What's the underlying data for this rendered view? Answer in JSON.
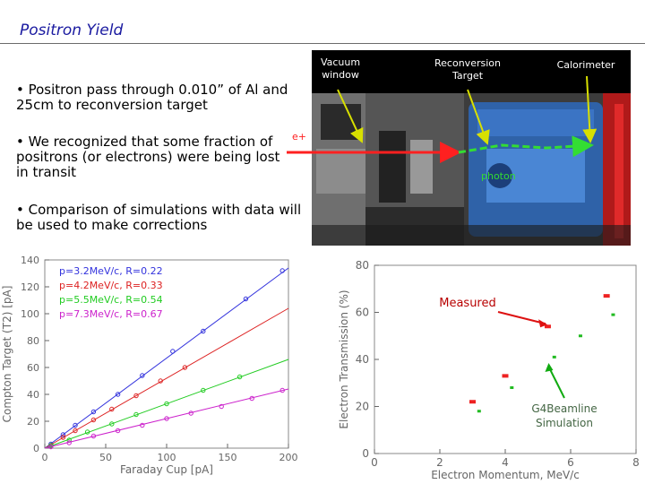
{
  "slide": {
    "title": "Positron Yield",
    "bullets": [
      "• Positron pass through 0.010” of Al and 25cm to reconversion target",
      "• We recognized that some fraction of positrons (or electrons) were being lost in transit",
      "• Comparison of simulations with data will be used to make corrections"
    ]
  },
  "photo": {
    "labels": {
      "vacuum_window": "Vacuum window",
      "reconversion_target": "Reconversion Target",
      "calorimeter": "Calorimeter",
      "positron": "e+",
      "photon": "photon"
    },
    "colors": {
      "positron_arrow": "#ff2020",
      "photon_arrow": "#33dd33",
      "label_arrow": "#d8e000"
    }
  },
  "chart_data": [
    {
      "type": "scatter",
      "xlabel": "Faraday Cup [pA]",
      "ylabel": "Compton Target (T2) [pA]",
      "xlim": [
        0,
        200
      ],
      "ylim": [
        0,
        140
      ],
      "xticks": [
        0,
        50,
        100,
        150,
        200
      ],
      "yticks": [
        0,
        20,
        40,
        60,
        80,
        100,
        120,
        140
      ],
      "grid": false,
      "legend_position": "top-left",
      "series": [
        {
          "name": "p=3.2MeV/c,  R=0.22",
          "color": "#3333dd",
          "slope": 0.67,
          "x": [
            5,
            15,
            25,
            40,
            60,
            80,
            105,
            130,
            165,
            195
          ],
          "y": [
            3,
            10,
            17,
            27,
            40,
            54,
            72,
            87,
            111,
            132
          ]
        },
        {
          "name": "p=4.2MeV/c,  R=0.33",
          "color": "#dd2222",
          "slope": 0.52,
          "x": [
            5,
            15,
            25,
            40,
            55,
            75,
            95,
            115
          ],
          "y": [
            2,
            8,
            13,
            21,
            29,
            39,
            50,
            60
          ]
        },
        {
          "name": "p=5.5MeV/c,  R=0.54",
          "color": "#22cc22",
          "slope": 0.33,
          "x": [
            5,
            20,
            35,
            55,
            75,
            100,
            130,
            160
          ],
          "y": [
            2,
            6,
            12,
            18,
            25,
            33,
            43,
            53
          ]
        },
        {
          "name": "p=7.3MeV/c,  R=0.67",
          "color": "#cc22cc",
          "slope": 0.22,
          "x": [
            5,
            20,
            40,
            60,
            80,
            100,
            120,
            145,
            170,
            195
          ],
          "y": [
            1,
            4,
            9,
            13,
            17,
            22,
            26,
            31,
            37,
            43
          ]
        }
      ]
    },
    {
      "type": "scatter",
      "xlabel": "Electron Momentum, MeV/c",
      "ylabel": "Electron Transmission (%)",
      "xlim": [
        0,
        8
      ],
      "ylim": [
        0,
        80
      ],
      "xticks": [
        0,
        2,
        4,
        6,
        8
      ],
      "yticks": [
        0,
        20,
        40,
        60,
        80
      ],
      "grid": false,
      "annotations": [
        {
          "text": "Measured",
          "color": "#dd1111",
          "arrow_to": [
            5.4,
            54
          ]
        },
        {
          "text": "G4Beamline Simulation",
          "color": "#11aa11",
          "arrow_to": [
            5.3,
            40
          ]
        }
      ],
      "series": [
        {
          "name": "Measured",
          "color": "#ee2222",
          "x": [
            3.0,
            4.0,
            5.3,
            7.1
          ],
          "y": [
            22,
            33,
            54,
            67
          ]
        },
        {
          "name": "G4Beamline Simulation",
          "color": "#22bb22",
          "x": [
            3.2,
            4.2,
            5.5,
            6.3,
            7.3
          ],
          "y": [
            18,
            28,
            41,
            50,
            59
          ]
        }
      ]
    }
  ]
}
